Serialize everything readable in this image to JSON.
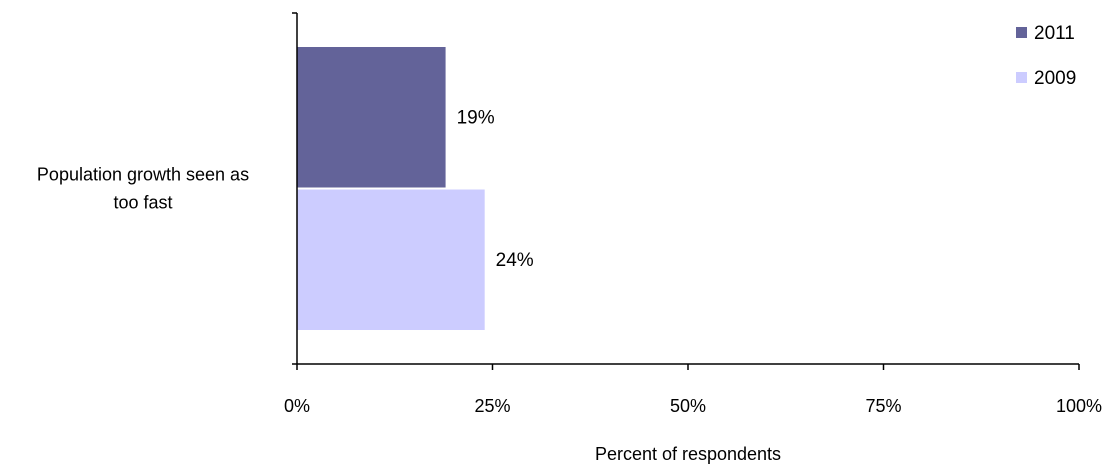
{
  "chart_data": {
    "type": "bar",
    "orientation": "horizontal",
    "categories": [
      "Population growth seen as too fast"
    ],
    "category_label_lines": [
      [
        "Population growth seen as",
        "too fast"
      ]
    ],
    "series": [
      {
        "name": "2011",
        "values": [
          19
        ],
        "labels": [
          "19%"
        ],
        "color": "#636399"
      },
      {
        "name": "2009",
        "values": [
          24
        ],
        "labels": [
          "24%"
        ],
        "color": "#ccccff"
      }
    ],
    "xlabel": "Percent of respondents",
    "ylabel": "",
    "title": "",
    "xlim": [
      0,
      100
    ],
    "xticks": [
      0,
      25,
      50,
      75,
      100
    ],
    "xtick_labels": [
      "0%",
      "25%",
      "50%",
      "75%",
      "100%"
    ],
    "grid": false,
    "legend_position": "top-right"
  }
}
